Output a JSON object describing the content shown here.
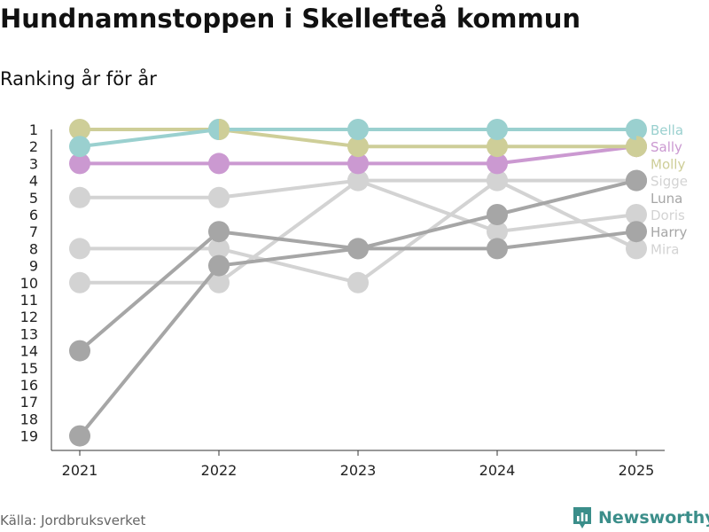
{
  "header": {
    "title": "Hundnamnstoppen i Skellefteå kommun",
    "subtitle": "Ranking år för år"
  },
  "footer": {
    "source": "Källa: Jordbruksverket",
    "brand": "Newsworthy",
    "brand_color": "#3b8e8a"
  },
  "chart_data": {
    "type": "line",
    "title": "Hundnamnstoppen i Skellefteå kommun",
    "subtitle": "Ranking år för år",
    "xlabel": "",
    "ylabel": "",
    "categories": [
      "2021",
      "2022",
      "2023",
      "2024",
      "2025"
    ],
    "y_ticks": [
      "1",
      "2",
      "3",
      "4",
      "5",
      "6",
      "7",
      "8",
      "9",
      "10",
      "11",
      "12",
      "13",
      "14",
      "15",
      "16",
      "17",
      "18",
      "19"
    ],
    "ylim": [
      1,
      19
    ],
    "y_inverted": true,
    "grid": false,
    "legend": "right, labels at line ends",
    "series": [
      {
        "name": "Bella",
        "values": [
          2,
          1,
          1,
          1,
          1
        ],
        "color": "#9ad0cf"
      },
      {
        "name": "Sally",
        "values": [
          3,
          3,
          3,
          3,
          2
        ],
        "color": "#cb99d1"
      },
      {
        "name": "Molly",
        "values": [
          1,
          1,
          2,
          2,
          2
        ],
        "color": "#cece98"
      },
      {
        "name": "Sigge",
        "values": [
          5,
          5,
          4,
          4,
          4
        ],
        "color": "#d3d3d3"
      },
      {
        "name": "Luna",
        "values": [
          19,
          9,
          8,
          6,
          4
        ],
        "color": "#a6a6a6"
      },
      {
        "name": "Doris",
        "values": [
          10,
          10,
          4,
          7,
          6
        ],
        "color": "#d3d3d3"
      },
      {
        "name": "Harry",
        "values": [
          14,
          7,
          8,
          8,
          7
        ],
        "color": "#a6a6a6"
      },
      {
        "name": "Mira",
        "values": [
          8,
          8,
          10,
          4,
          8
        ],
        "color": "#d3d3d3"
      }
    ]
  }
}
